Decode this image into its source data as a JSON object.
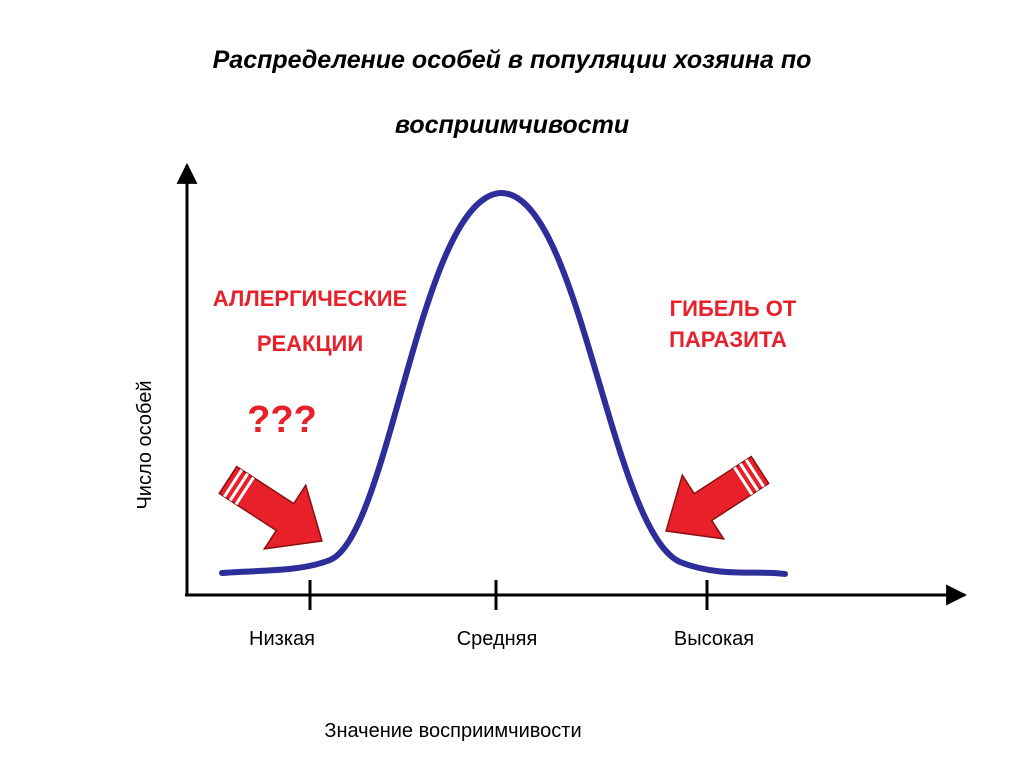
{
  "title_lines": [
    "Распределение особей в популяции хозяина по",
    "восприимчивости"
  ],
  "annotations": {
    "left_lines": [
      "АЛЛЕРГИЧЕСКИЕ",
      "РЕАКЦИИ"
    ],
    "question": "???",
    "right_lines": [
      "ГИБЕЛЬ ОТ",
      "ПАРАЗИТА"
    ]
  },
  "y_axis_label": "Число особей",
  "x_axis_label": "Значение восприимчивости",
  "x_ticks": [
    "Низкая",
    "Средняя",
    "Высокая"
  ]
}
